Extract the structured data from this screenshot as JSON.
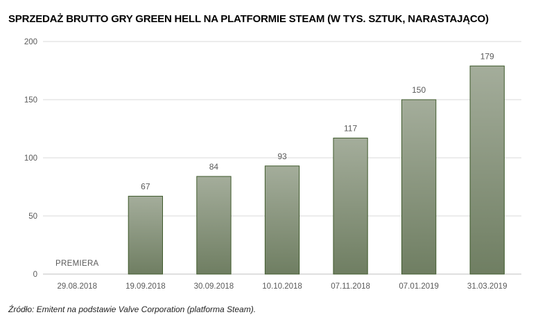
{
  "chart_data": {
    "type": "bar",
    "title": "SPRZEDAŻ BRUTTO GRY GREEN HELL NA PLATFORMIE STEAM (W TYS. SZTUK, NARASTAJĄCO)",
    "categories": [
      "29.08.2018",
      "19.09.2018",
      "30.09.2018",
      "10.10.2018",
      "07.11.2018",
      "07.01.2019",
      "31.03.2019"
    ],
    "values": [
      null,
      67,
      84,
      93,
      117,
      150,
      179
    ],
    "data_labels": [
      "",
      "67",
      "84",
      "93",
      "117",
      "150",
      "179"
    ],
    "annotations": [
      {
        "category": "29.08.2018",
        "text": "PREMIERA"
      }
    ],
    "ylim": [
      0,
      200
    ],
    "yticks": [
      0,
      50,
      100,
      150,
      200
    ],
    "xlabel": "",
    "ylabel": "",
    "grid": true,
    "legend": "none"
  },
  "footer": {
    "source": "Źródło: Emitent na podstawie Valve Corporation (platforma Steam)."
  },
  "colors": {
    "bar_top": "#a4ad9b",
    "bar_bottom": "#6f7e62",
    "bar_stroke": "#3f5a2c",
    "grid": "#d9d9d9",
    "axis": "#bfbfbf",
    "text": "#595959"
  }
}
